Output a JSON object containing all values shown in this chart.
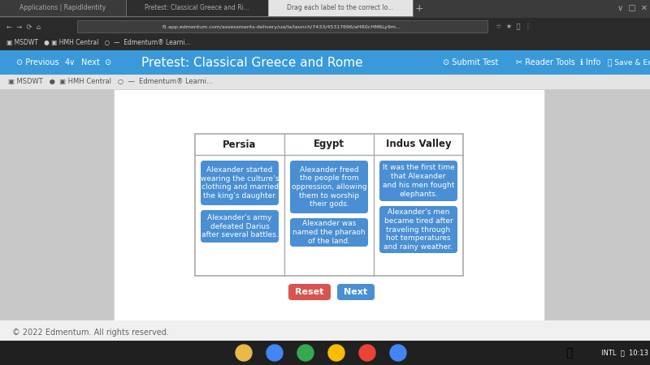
{
  "title": "Pretest: Classical Greece and Rome",
  "nav_bar_color": "#3a9ad9",
  "bg_color": "#c8c8c8",
  "content_bg": "#ffffff",
  "content_border": "#cccccc",
  "table_border_color": "#aaaaaa",
  "header_text_color": "#222222",
  "card_bg": "#4a8fd4",
  "card_text_color": "#ffffff",
  "columns": [
    "Persia",
    "Egypt",
    "Indus Valley"
  ],
  "col0_cards": [
    "Alexander started\nwearing the culture’s\nclothing and married\nthe king’s daughter.",
    "Alexander’s army\ndefeated Darius\nafter several battles."
  ],
  "col1_cards": [
    "Alexander freed\nthe people from\noppression, allowing\nthem to worship\ntheir gods.",
    "Alexander was\nnamed the pharaoh\nof the land."
  ],
  "col2_cards": [
    "It was the first time\nthat Alexander\nand his men fought\nelephants.",
    "Alexander’s men\nbecame tired after\ntraveling through\nhot temperatures\nand rainy weather."
  ],
  "reset_btn_color": "#d9534f",
  "next_btn_color": "#4a8fd4",
  "reset_label": "Reset",
  "next_label": "Next",
  "footer_text": "© 2022 Edmentum. All rights reserved.",
  "tab_bar_color": "#3b3b3b",
  "tab_colors": [
    "#3b3b3b",
    "#2a2a2a",
    "#e8e8e8"
  ],
  "tab_labels": [
    "Applications | RapidIdentity",
    "Pretest: Classical Greece and Ri...",
    "Drag each label to the correct lo..."
  ],
  "addr_bar_color": "#2a2a2a",
  "addr_text": "f1.app.edmentum.com/assessments-delivery/ua/la/launch/7433/45317696/aHR0cHM6Ly9m...",
  "breadcrumb_color": "#eeeeee",
  "breadcrumb_text": "■ MSDWT    ● ■ HMH Central    ○    — Edmentum® Learni...",
  "taskbar_color": "#202020",
  "taskbar_icon_color": "#e8b84b"
}
